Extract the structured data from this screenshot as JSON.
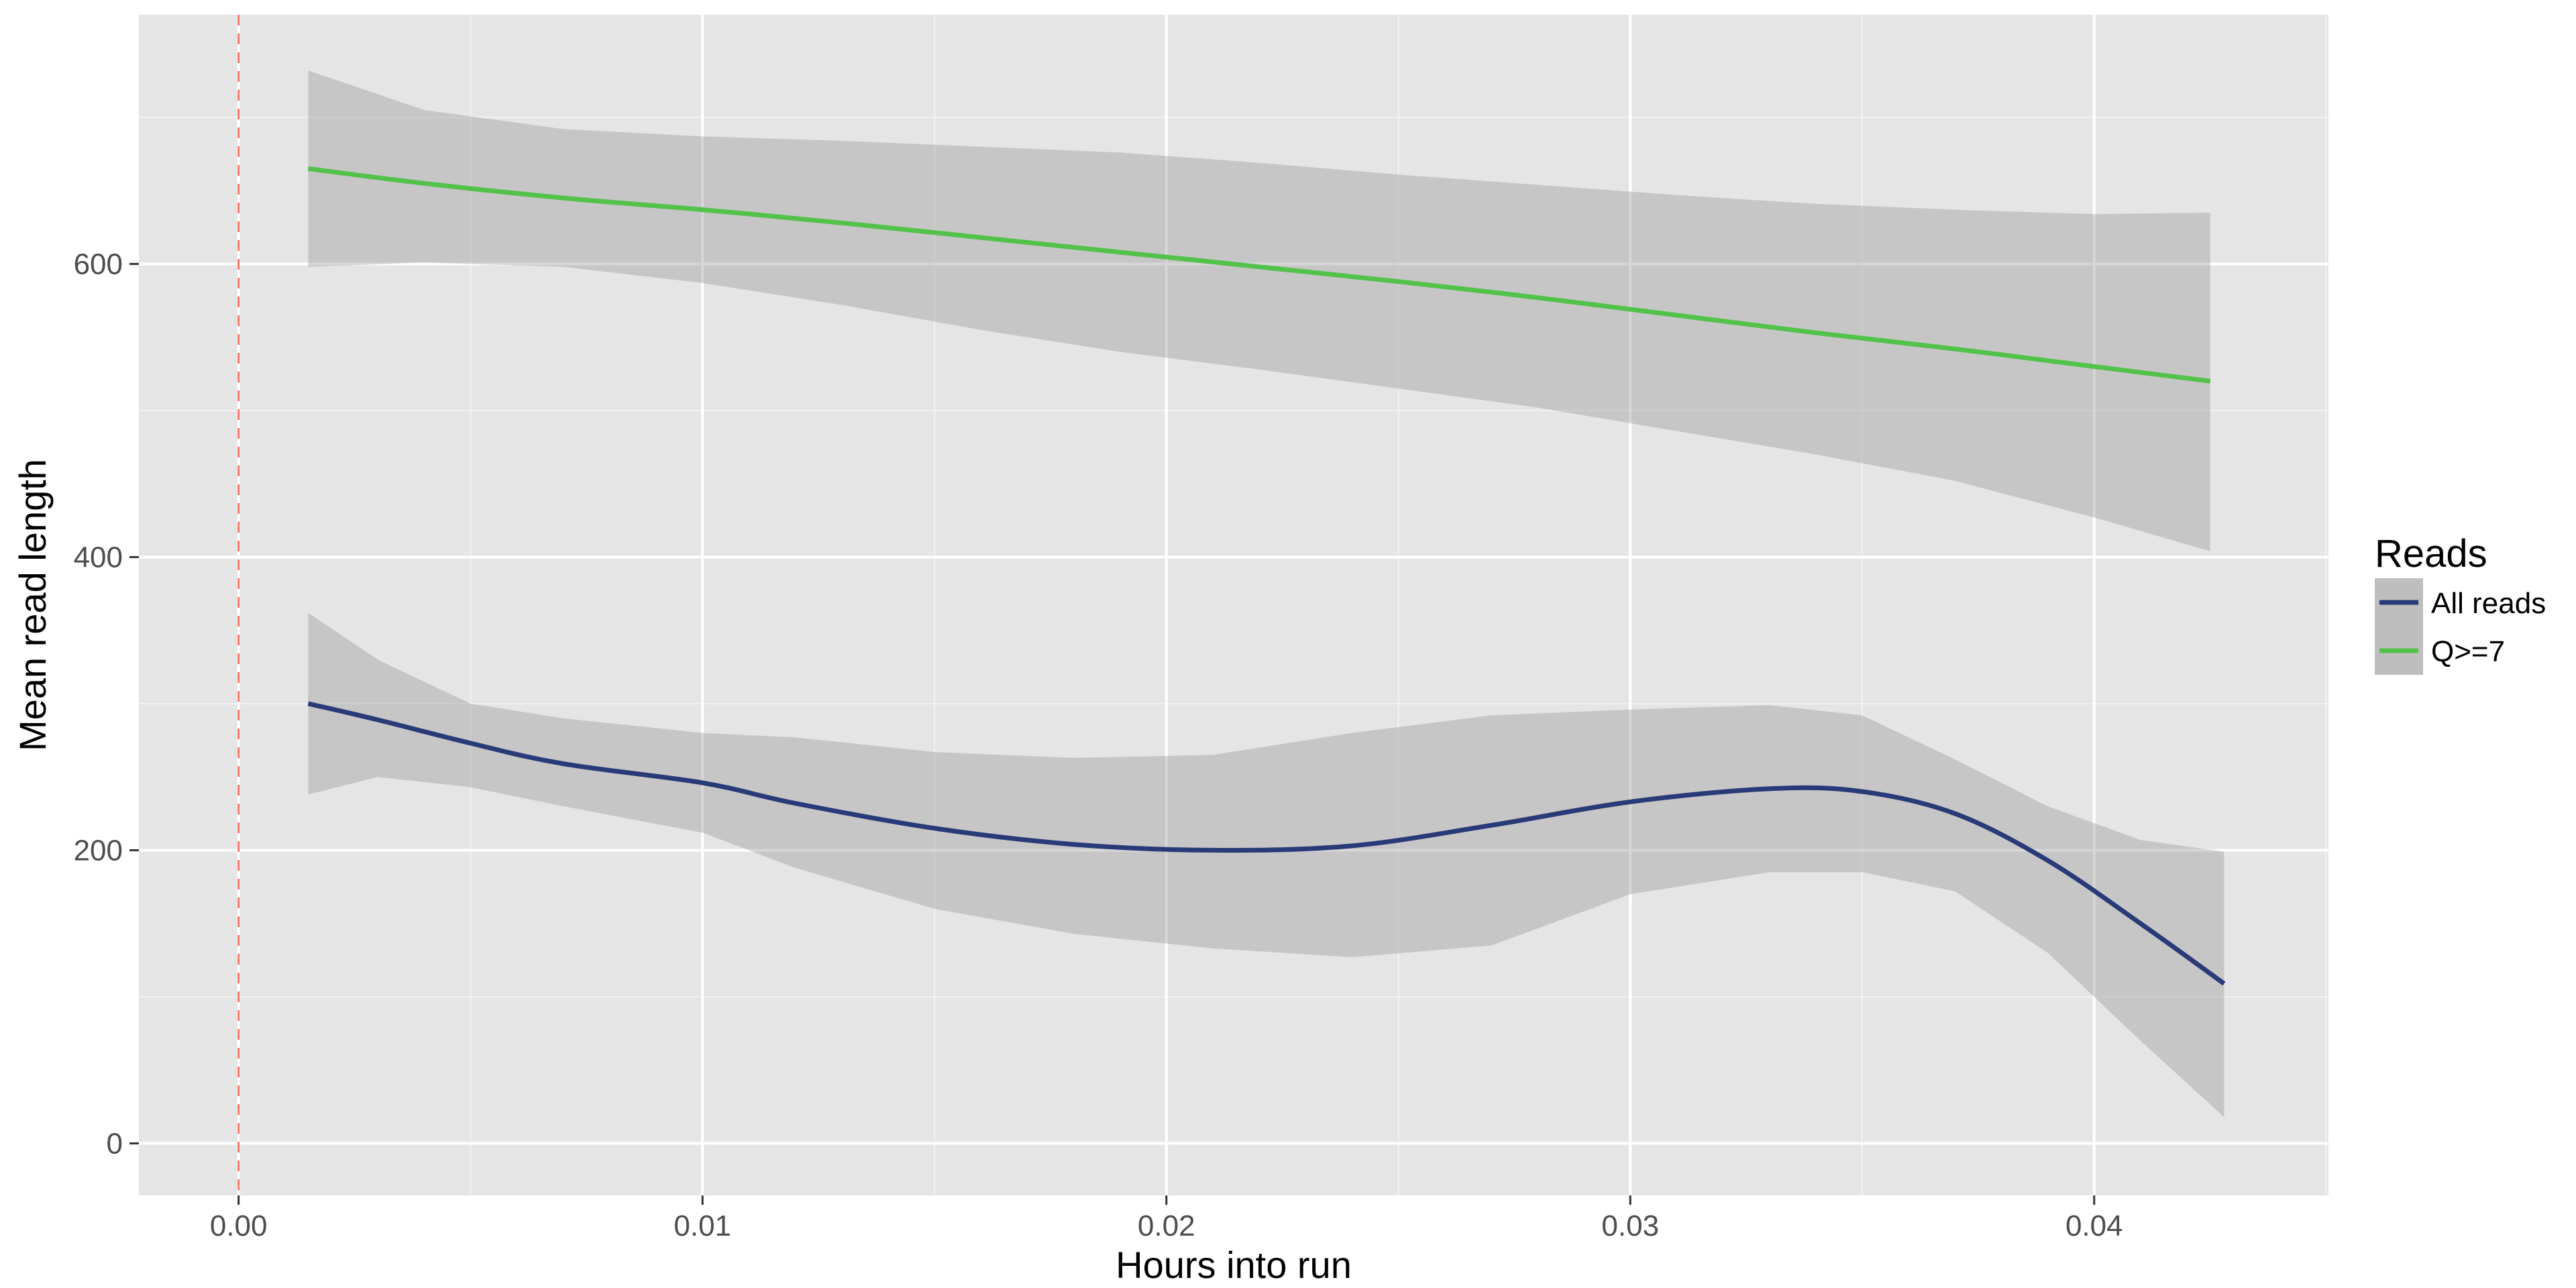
{
  "chart_data": {
    "type": "line",
    "xlabel": "Hours into run",
    "ylabel": "Mean read length",
    "xlim": [
      -0.00215,
      0.04505
    ],
    "ylim": [
      -35.5,
      770
    ],
    "x_ticks": [
      0.0,
      0.01,
      0.02,
      0.03,
      0.04
    ],
    "x_tick_labels": [
      "0.00",
      "0.01",
      "0.02",
      "0.03",
      "0.04"
    ],
    "y_ticks": [
      0,
      200,
      400,
      600
    ],
    "y_tick_labels": [
      "0",
      "200",
      "400",
      "600"
    ],
    "grid": true,
    "vline": {
      "x": 0.0,
      "style": "dashed",
      "color": "#f8766d"
    },
    "legend": {
      "title": "Reads",
      "position": "right"
    },
    "series": [
      {
        "name": "All reads",
        "color": "#283a77",
        "x": [
          0.0015,
          0.003,
          0.005,
          0.007,
          0.01,
          0.012,
          0.015,
          0.018,
          0.021,
          0.024,
          0.027,
          0.03,
          0.033,
          0.035,
          0.037,
          0.039,
          0.041,
          0.0428
        ],
        "y": [
          300,
          289,
          273,
          259,
          246,
          232,
          215,
          204,
          200,
          203,
          217,
          233,
          242,
          240,
          225,
          193,
          150,
          109
        ],
        "ci_upper": [
          362,
          330,
          300,
          290,
          280,
          277,
          267,
          263,
          265,
          280,
          292,
          296,
          299,
          292,
          262,
          230,
          207,
          199
        ],
        "ci_lower": [
          238,
          250,
          243,
          230,
          212,
          188,
          160,
          143,
          133,
          127,
          135,
          170,
          185,
          185,
          172,
          130,
          70,
          18
        ]
      },
      {
        "name": "Q>=7",
        "color": "#52c24a",
        "x": [
          0.0015,
          0.004,
          0.007,
          0.01,
          0.013,
          0.016,
          0.019,
          0.022,
          0.025,
          0.028,
          0.031,
          0.034,
          0.037,
          0.04,
          0.0425
        ],
        "y": [
          665,
          655,
          645,
          637,
          628,
          618,
          608,
          598,
          588,
          577,
          565,
          553,
          542,
          530,
          520
        ],
        "ci_upper": [
          732,
          705,
          692,
          687,
          684,
          680,
          676,
          669,
          661,
          654,
          647,
          641,
          637,
          634,
          635
        ],
        "ci_lower": [
          598,
          601,
          598,
          587,
          572,
          555,
          540,
          528,
          515,
          502,
          486,
          470,
          452,
          427,
          404
        ]
      }
    ]
  }
}
